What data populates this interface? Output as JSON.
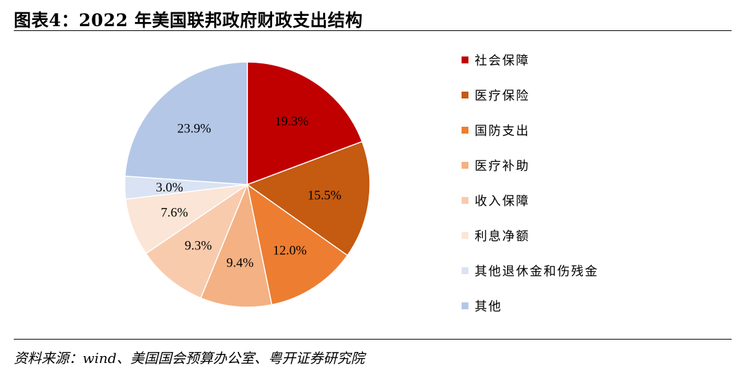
{
  "title": "图表4：2022 年美国联邦政府财政支出结构",
  "source": "资料来源：wind、美国国会预算办公室、粤开证券研究院",
  "chart_data": {
    "type": "pie",
    "title": "",
    "slices": [
      {
        "label": "社会保障",
        "value": 19.3,
        "display": "19.3%",
        "color": "#c00000"
      },
      {
        "label": "医疗保险",
        "value": 15.5,
        "display": "15.5%",
        "color": "#c55a11"
      },
      {
        "label": "国防支出",
        "value": 12.0,
        "display": "12.0%",
        "color": "#ed7d31"
      },
      {
        "label": "医疗补助",
        "value": 9.4,
        "display": "9.4%",
        "color": "#f4b183"
      },
      {
        "label": "收入保障",
        "value": 9.3,
        "display": "9.3%",
        "color": "#f8cbad"
      },
      {
        "label": "利息净额",
        "value": 7.6,
        "display": "7.6%",
        "color": "#fbe5d6"
      },
      {
        "label": "其他退休金和伤残金",
        "value": 3.0,
        "display": "3.0%",
        "color": "#dae3f3"
      },
      {
        "label": "其他",
        "value": 23.9,
        "display": "23.9%",
        "color": "#b4c7e7"
      }
    ],
    "legend_position": "right"
  }
}
